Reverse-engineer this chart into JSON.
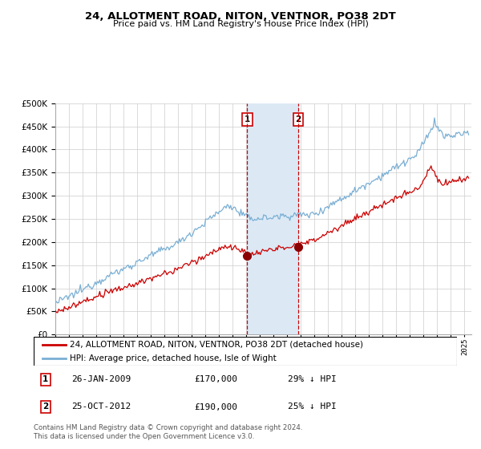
{
  "title": "24, ALLOTMENT ROAD, NITON, VENTNOR, PO38 2DT",
  "subtitle": "Price paid vs. HM Land Registry's House Price Index (HPI)",
  "legend_line1": "24, ALLOTMENT ROAD, NITON, VENTNOR, PO38 2DT (detached house)",
  "legend_line2": "HPI: Average price, detached house, Isle of Wight",
  "annotation1_date": "26-JAN-2009",
  "annotation1_price": "£170,000",
  "annotation1_hpi": "29% ↓ HPI",
  "annotation2_date": "25-OCT-2012",
  "annotation2_price": "£190,000",
  "annotation2_hpi": "25% ↓ HPI",
  "footer": "Contains HM Land Registry data © Crown copyright and database right 2024.\nThis data is licensed under the Open Government Licence v3.0.",
  "red_line_color": "#cc0000",
  "blue_line_color": "#7aafd4",
  "vline_color": "#cc0000",
  "shade_color": "#dce9f5",
  "marker_color": "#8b0000",
  "box_color": "#cc0000",
  "ylim_min": 0,
  "ylim_max": 500000,
  "sale1_year": 2009.07,
  "sale2_year": 2012.82,
  "sale1_price": 170000,
  "sale2_price": 190000
}
